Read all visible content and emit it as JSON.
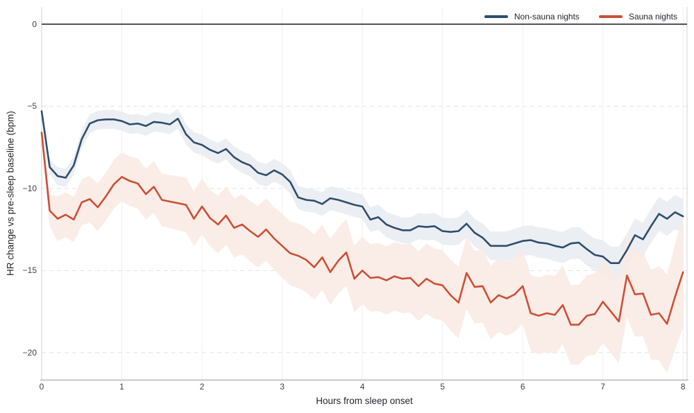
{
  "colors": {
    "background": "#ffffff",
    "zero_line": "#1a1a1a",
    "grid_vertical": "#f0f0f0",
    "grid_horizontal": "#e2e2e2",
    "spine": "#d8d8d8",
    "spine_bottom": "#c5c5c5",
    "tick_text": "#3c4048",
    "label_text": "#24262b",
    "non_sauna_line": "#2e4d6b",
    "non_sauna_band": "#e8ecf1",
    "sauna_line": "#cc4f36",
    "sauna_band": "#f9ebe4"
  },
  "chart_data": {
    "type": "line",
    "title": "",
    "xlabel": "Hours from sleep onset",
    "ylabel": "HR change vs pre-sleep baseline (bpm)",
    "xlim": [
      0,
      8.05
    ],
    "ylim": [
      -21.65,
      1.05
    ],
    "xticks": [
      0,
      1,
      2,
      3,
      4,
      5,
      6,
      7,
      8
    ],
    "yticks": [
      0,
      -5,
      -10,
      -15,
      -20
    ],
    "grid": {
      "vertical": "solid-faint",
      "horizontal": "dashed"
    },
    "zero_line": true,
    "legend_position": "top-right",
    "x_start": 0,
    "x_step": 0.1,
    "series": [
      {
        "key": "non-sauna",
        "name": "Non-sauna nights",
        "color": "#2e4d6b",
        "band_color": "#e8ecf1",
        "values": [
          -5.3,
          -8.7,
          -9.25,
          -9.35,
          -8.6,
          -7.0,
          -6.05,
          -5.85,
          -5.8,
          -5.8,
          -5.9,
          -6.1,
          -6.05,
          -6.2,
          -5.95,
          -6.0,
          -6.1,
          -5.75,
          -6.7,
          -7.2,
          -7.35,
          -7.65,
          -7.85,
          -7.6,
          -8.1,
          -8.4,
          -8.6,
          -9.05,
          -9.2,
          -8.9,
          -9.15,
          -9.6,
          -10.55,
          -10.7,
          -10.75,
          -10.95,
          -10.6,
          -10.7,
          -10.85,
          -11.0,
          -11.1,
          -11.9,
          -11.75,
          -12.2,
          -12.4,
          -12.55,
          -12.55,
          -12.3,
          -12.35,
          -12.3,
          -12.6,
          -12.65,
          -12.6,
          -12.15,
          -12.7,
          -13.0,
          -13.5,
          -13.5,
          -13.5,
          -13.35,
          -13.2,
          -13.15,
          -13.3,
          -13.35,
          -13.5,
          -13.6,
          -13.35,
          -13.3,
          -13.7,
          -14.05,
          -14.15,
          -14.55,
          -14.55,
          -13.75,
          -12.85,
          -13.1,
          -12.3,
          -11.55,
          -11.85,
          -11.45,
          -11.7
        ],
        "band_halfwidth_anchors": [
          [
            0,
            0.3
          ],
          [
            0.2,
            0.55
          ],
          [
            1,
            0.58
          ],
          [
            2,
            0.62
          ],
          [
            3,
            0.7
          ],
          [
            4,
            0.75
          ],
          [
            5,
            0.82
          ],
          [
            6,
            0.9
          ],
          [
            7,
            1.0
          ],
          [
            8,
            1.05
          ]
        ]
      },
      {
        "key": "sauna",
        "name": "Sauna nights",
        "color": "#cc4f36",
        "band_color": "#f9ebe4",
        "values": [
          -6.6,
          -11.35,
          -11.85,
          -11.6,
          -11.9,
          -10.85,
          -10.65,
          -11.15,
          -10.5,
          -9.75,
          -9.3,
          -9.55,
          -9.7,
          -10.35,
          -9.9,
          -10.7,
          -10.8,
          -10.9,
          -11.0,
          -11.85,
          -11.1,
          -11.8,
          -12.2,
          -11.65,
          -12.4,
          -12.2,
          -12.6,
          -12.95,
          -12.5,
          -13.05,
          -13.5,
          -13.95,
          -14.1,
          -14.35,
          -14.8,
          -14.2,
          -15.1,
          -14.4,
          -13.9,
          -15.5,
          -15.0,
          -15.45,
          -15.4,
          -15.6,
          -15.35,
          -15.5,
          -15.45,
          -15.95,
          -15.5,
          -15.8,
          -15.9,
          -16.5,
          -16.95,
          -15.15,
          -16.0,
          -15.95,
          -16.95,
          -16.5,
          -16.7,
          -16.45,
          -15.95,
          -17.6,
          -17.75,
          -17.6,
          -17.7,
          -17.1,
          -18.3,
          -18.3,
          -17.75,
          -17.65,
          -16.9,
          -17.5,
          -18.1,
          -15.3,
          -16.45,
          -16.4,
          -17.7,
          -17.6,
          -18.25,
          -16.6,
          -15.1
        ],
        "band_halfwidth_anchors": [
          [
            0,
            0.6
          ],
          [
            0.2,
            1.35
          ],
          [
            1,
            1.5
          ],
          [
            2,
            1.7
          ],
          [
            3,
            1.95
          ],
          [
            4,
            2.05
          ],
          [
            5,
            2.15
          ],
          [
            6,
            2.3
          ],
          [
            7,
            2.5
          ],
          [
            7.5,
            2.6
          ],
          [
            7.8,
            3.0
          ],
          [
            8,
            3.4
          ]
        ]
      }
    ]
  }
}
